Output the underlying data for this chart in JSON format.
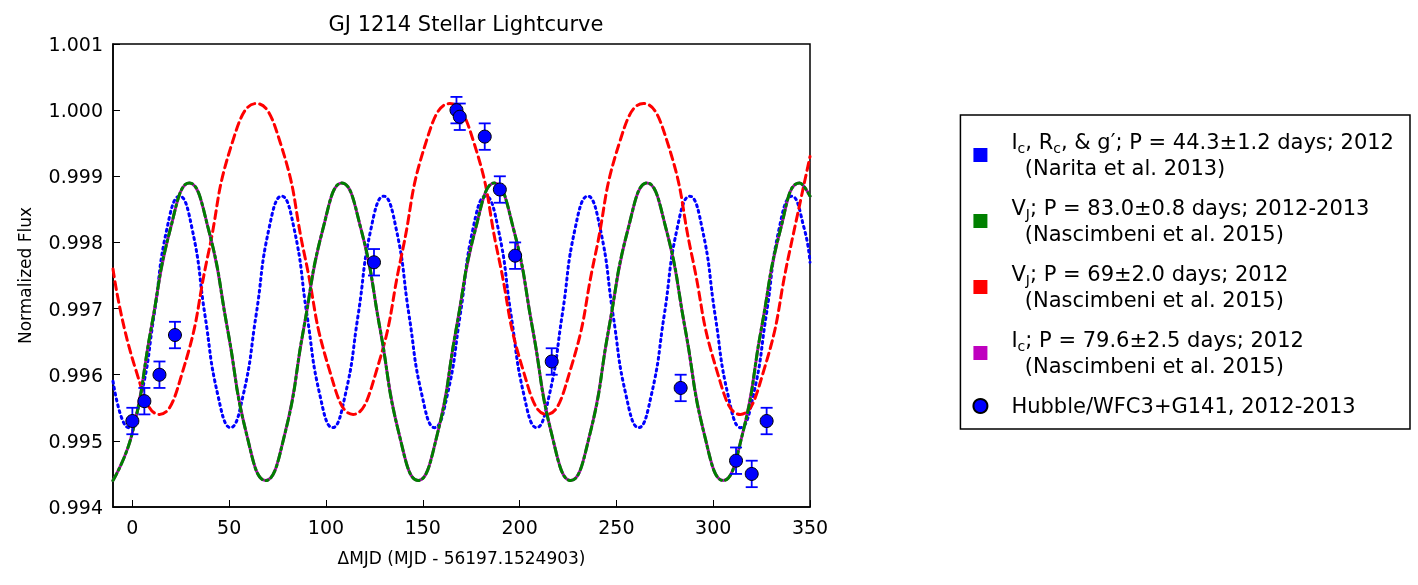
{
  "chart_data": {
    "type": "line",
    "title": "GJ 1214 Stellar Lightcurve",
    "xlabel": "ΔMJD (MJD - 56197.1524903)",
    "ylabel": "Normalized Flux",
    "xlim": [
      -10,
      350
    ],
    "xticks": [
      0,
      50,
      100,
      150,
      200,
      250,
      300,
      350
    ],
    "ylim": [
      0.994,
      1.001
    ],
    "yticks": [
      0.994,
      0.995,
      0.996,
      0.997,
      0.998,
      0.999,
      {
        "value": 1.0,
        "label": "1.000"
      },
      1.001
    ],
    "grid": false,
    "legend": "right",
    "series": [
      {
        "name": "I$_{c}$, R$_{c}$, & g′; P = 44.3±1.2 days; 2012\n  (Narita et al. 2013)",
        "color": "#0000ff",
        "line_style": "dotted",
        "marker": "none",
        "x": [
          -10,
          -2,
          4.6,
          11.2,
          17.8,
          24.4,
          30.9,
          37.5,
          44.1,
          50.7,
          57.3,
          63.9,
          70.5,
          77.1,
          83.6,
          90.2,
          96.8,
          103.4,
          110,
          116.6,
          123.2,
          129.8,
          136.3,
          142.9,
          149.5,
          156.1,
          162.7,
          169.3,
          175.9,
          182.5,
          189,
          195.6,
          202.2,
          208.8,
          215.4,
          222,
          228.6,
          235.2,
          241.7,
          248.3,
          254.9,
          261.5,
          268.1,
          274.7,
          281.3,
          287.9,
          294.4,
          301,
          307.6,
          314.2,
          320.8,
          327.4,
          334,
          340.6,
          347.1,
          350
        ],
        "values": [
          0.9959,
          0.9952,
          0.9957,
          0.9969,
          0.9982,
          0.9987,
          0.9982,
          0.9969,
          0.9957,
          0.9952,
          0.9957,
          0.9969,
          0.9982,
          0.9987,
          0.9982,
          0.9969,
          0.9957,
          0.9952,
          0.9957,
          0.9969,
          0.9982,
          0.9987,
          0.9982,
          0.9969,
          0.9957,
          0.9952,
          0.9957,
          0.9969,
          0.9982,
          0.9987,
          0.9982,
          0.9969,
          0.9957,
          0.9952,
          0.9957,
          0.9969,
          0.9982,
          0.9987,
          0.9982,
          0.9969,
          0.9957,
          0.9952,
          0.9957,
          0.9969,
          0.9982,
          0.9987,
          0.9982,
          0.9969,
          0.9957,
          0.9952,
          0.9957,
          0.9969,
          0.9982,
          0.9987,
          0.9982,
          0.9977
        ]
      },
      {
        "name": "V$_{J}$; P = 83.0±0.8 days; 2012-2013\n  (Nascimbeni et al. 2015)",
        "color": "#008000",
        "line_style": "dashdot",
        "marker": "none",
        "x": [
          -10,
          -0.2,
          9.7,
          19.6,
          29.4,
          39.3,
          49.1,
          59,
          68.8,
          78.7,
          88.5,
          98.4,
          108.2,
          118.1,
          127.9,
          137.8,
          147.6,
          157.5,
          167.3,
          177.2,
          187,
          196.9,
          206.7,
          216.6,
          226.4,
          236.3,
          246.1,
          256,
          265.8,
          275.7,
          285.5,
          295.4,
          305.2,
          315.1,
          324.9,
          334.8,
          344.6,
          350
        ],
        "values": [
          0.9944,
          0.9951,
          0.9967,
          0.9982,
          0.9989,
          0.9982,
          0.9967,
          0.9951,
          0.9944,
          0.9951,
          0.9967,
          0.9982,
          0.9989,
          0.9982,
          0.9967,
          0.9951,
          0.9944,
          0.9951,
          0.9967,
          0.9982,
          0.9989,
          0.9982,
          0.9967,
          0.9951,
          0.9944,
          0.9951,
          0.9967,
          0.9982,
          0.9989,
          0.9982,
          0.9967,
          0.9951,
          0.9944,
          0.9951,
          0.9967,
          0.9982,
          0.9989,
          0.9987
        ]
      },
      {
        "name": "V$_{J}$; P = 69±2.0 days; 2012\n  (Nascimbeni et al. 2015)",
        "color": "#ff0000",
        "line_style": "dashed",
        "marker": "none",
        "x": [
          -10,
          1.5,
          14,
          26.5,
          39,
          51.5,
          64,
          76.5,
          89,
          101.5,
          114,
          126.5,
          139,
          151.5,
          164,
          176.5,
          189,
          201.5,
          214,
          226.5,
          239,
          251.5,
          264,
          276.5,
          289,
          301.5,
          314,
          326.5,
          339,
          350
        ],
        "values": [
          0.9976,
          0.9961,
          0.9954,
          0.9961,
          0.9978,
          0.9995,
          1.0001,
          0.9995,
          0.9978,
          0.9961,
          0.9954,
          0.9961,
          0.9978,
          0.9995,
          1.0001,
          0.9995,
          0.9978,
          0.9961,
          0.9954,
          0.9961,
          0.9978,
          0.9995,
          1.0001,
          0.9995,
          0.9978,
          0.9961,
          0.9954,
          0.9961,
          0.9978,
          0.9993
        ]
      },
      {
        "name": "I$_{c}$; P = 79.6±2.5 days; 2012\n  (Nascimbeni et al. 2015)",
        "color": "#bf00bf",
        "line_style": "solid",
        "marker": "none",
        "x": [
          -10,
          -0.2,
          9.7,
          19.6,
          29.4,
          39.3,
          49.1,
          59,
          68.8,
          78.7,
          88.5,
          98.4,
          108.2,
          118.1,
          127.9,
          137.8,
          147.6,
          157.5,
          167.3,
          177.2,
          187,
          196.9,
          206.7,
          216.6,
          226.4,
          236.3,
          246.1,
          256,
          265.8,
          275.7,
          285.5,
          295.4,
          305.2,
          315.1,
          324.9,
          334.8,
          344.6,
          350
        ],
        "values": [
          0.9944,
          0.9951,
          0.9967,
          0.9982,
          0.9989,
          0.9982,
          0.9967,
          0.9951,
          0.9944,
          0.9951,
          0.9967,
          0.9982,
          0.9989,
          0.9982,
          0.9967,
          0.9951,
          0.9944,
          0.9951,
          0.9967,
          0.9982,
          0.9989,
          0.9982,
          0.9967,
          0.9951,
          0.9944,
          0.9951,
          0.9967,
          0.9982,
          0.9989,
          0.9982,
          0.9967,
          0.9951,
          0.9944,
          0.9951,
          0.9967,
          0.9982,
          0.9989,
          0.9987
        ]
      },
      {
        "name": "Hubble/WFC3+G141, 2012-2013",
        "type": "scatter",
        "color": "#0000ff",
        "marker": "circle",
        "x": [
          0,
          6.2,
          14,
          22,
          124.8,
          167.4,
          169.1,
          182,
          189.8,
          197.7,
          216.6,
          283.2,
          311.8,
          319.9,
          327.6
        ],
        "values": [
          0.9953,
          0.9956,
          0.996,
          0.9966,
          0.9977,
          1.0,
          0.9999,
          0.9996,
          0.9988,
          0.9978,
          0.9962,
          0.9958,
          0.9947,
          0.9945,
          0.9953
        ],
        "errors": [
          0.0002,
          0.0002,
          0.0002,
          0.0002,
          0.0002,
          0.0002,
          0.0002,
          0.0002,
          0.0002,
          0.0002,
          0.0002,
          0.0002,
          0.0002,
          0.0002,
          0.0002
        ]
      }
    ]
  }
}
